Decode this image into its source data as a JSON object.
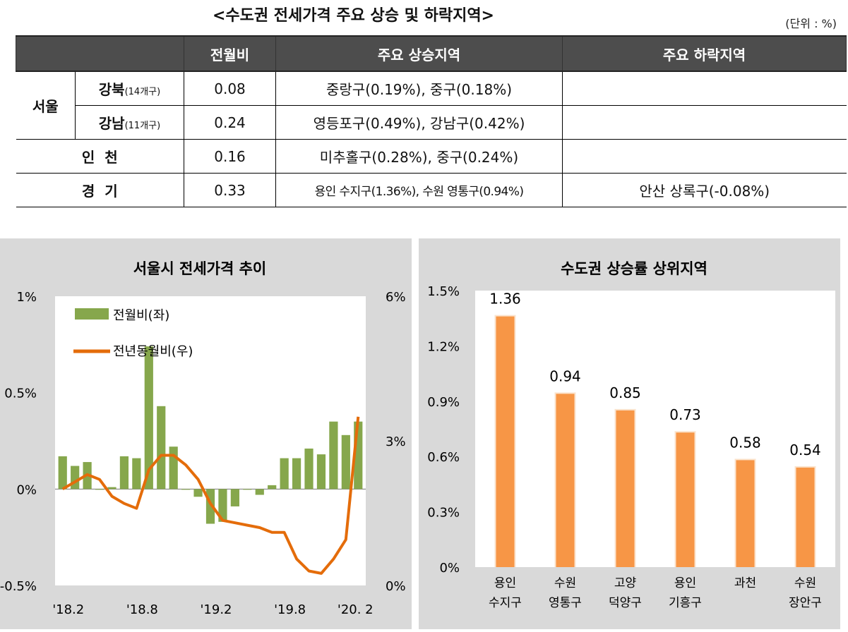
{
  "table": {
    "title": "<수도권 전세가격 주요 상승 및 하락지역>",
    "unit": "(단위 : %)",
    "headers": [
      "",
      "전월비",
      "주요 상승지역",
      "주요 하락지역"
    ],
    "seoul_label": "서울",
    "rows": [
      {
        "region": "강북",
        "count": "(14개구)",
        "mom": "0.08",
        "rising": "중랑구(0.19%), 중구(0.18%)",
        "falling": ""
      },
      {
        "region": "강남",
        "count": "(11개구)",
        "mom": "0.24",
        "rising": "영등포구(0.49%), 강남구(0.42%)",
        "falling": ""
      },
      {
        "region": "인  천",
        "count": "",
        "mom": "0.16",
        "rising": "미추홀구(0.28%), 중구(0.24%)",
        "falling": ""
      },
      {
        "region": "경  기",
        "count": "",
        "mom": "0.33",
        "rising": "용인 수지구(1.36%), 수원 영통구(0.94%)",
        "falling": "안산 상록구(-0.08%)"
      }
    ]
  },
  "chart_data": [
    {
      "type": "bar+line",
      "title": "서울시 전세가격 추이",
      "x_tick_labels": [
        "'18.2",
        "'18.8",
        "'19.2",
        "'19.8",
        "'20. 2"
      ],
      "y_left_ticks": [
        "1%",
        "0.5%",
        "0%",
        "-0.5%"
      ],
      "y_left_range": [
        -0.5,
        1.0
      ],
      "y_right_ticks": [
        "6%",
        "3%",
        "0%"
      ],
      "y_right_range": [
        0,
        6
      ],
      "legend": [
        {
          "name": "전월비(좌)",
          "color": "#86a74c"
        },
        {
          "name": "전년동월비(우)",
          "color": "#e46c0a"
        }
      ],
      "series": [
        {
          "name": "전월비(좌)",
          "type": "bar",
          "axis": "left",
          "values": [
            0.17,
            0.12,
            0.14,
            0.0,
            0.01,
            0.17,
            0.16,
            0.74,
            0.43,
            0.22,
            0.0,
            -0.04,
            -0.18,
            -0.17,
            -0.09,
            0.0,
            -0.03,
            0.02,
            0.16,
            0.16,
            0.21,
            0.18,
            0.35,
            0.28,
            0.35
          ]
        },
        {
          "name": "전년동월비(우)",
          "type": "line",
          "axis": "right",
          "values": [
            2.0,
            2.15,
            2.3,
            2.2,
            1.85,
            1.7,
            1.6,
            2.4,
            2.7,
            2.7,
            2.5,
            2.2,
            1.7,
            1.35,
            1.3,
            1.25,
            1.2,
            1.1,
            1.1,
            0.55,
            0.3,
            0.25,
            0.55,
            0.95,
            3.5
          ]
        }
      ]
    },
    {
      "type": "bar",
      "title": "수도권 상승률 상위지역",
      "categories": [
        [
          "용인",
          "수지구"
        ],
        [
          "수원",
          "영통구"
        ],
        [
          "고양",
          "덕양구"
        ],
        [
          "용인",
          "기흥구"
        ],
        [
          "과천",
          ""
        ],
        [
          "수원",
          "장안구"
        ]
      ],
      "values": [
        1.36,
        0.94,
        0.85,
        0.73,
        0.58,
        0.54
      ],
      "data_labels": [
        "1.36",
        "0.94",
        "0.85",
        "0.73",
        "0.58",
        "0.54"
      ],
      "y_ticks": [
        "1.5%",
        "1.2%",
        "0.9%",
        "0.6%",
        "0.3%",
        "0%"
      ],
      "ylim": [
        0,
        1.5
      ],
      "bar_color": "#f79646"
    }
  ]
}
